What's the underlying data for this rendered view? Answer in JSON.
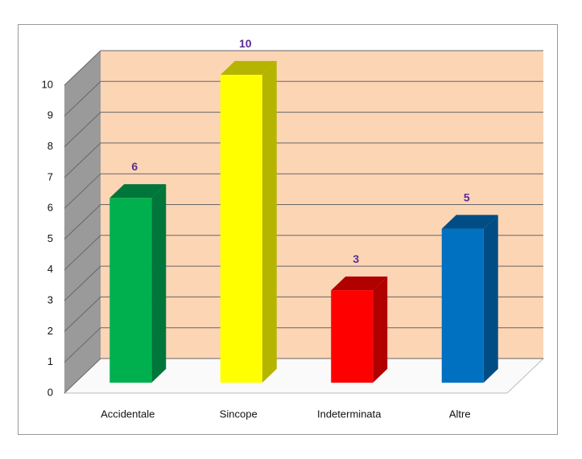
{
  "chart_data": {
    "type": "bar3d",
    "categories": [
      "Accidentale",
      "Sincope",
      "Indeterminata",
      "Altre"
    ],
    "values": [
      6,
      10,
      3,
      5
    ],
    "colors": [
      "#00b04f",
      "#ffff00",
      "#ff0000",
      "#0070c0"
    ],
    "side_colors": [
      "#00763a",
      "#b5b500",
      "#b00000",
      "#004d86"
    ],
    "ylim": [
      0,
      10
    ],
    "yticks": [
      0,
      1,
      2,
      3,
      4,
      5,
      6,
      7,
      8,
      9,
      10
    ],
    "grid": true
  }
}
